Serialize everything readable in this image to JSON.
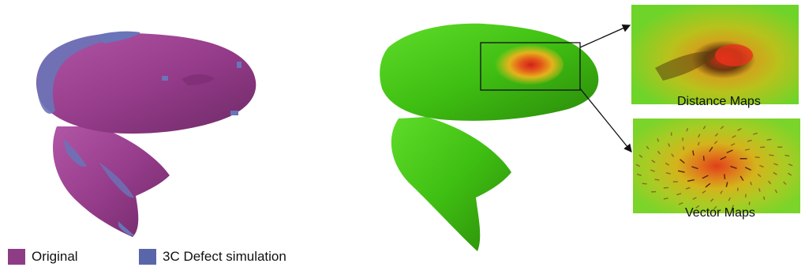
{
  "figure": {
    "legend": [
      {
        "label": "Original",
        "color": "#8e3c86"
      },
      {
        "label": "3C Defect simulation",
        "color": "#5a66aa"
      }
    ],
    "insets": {
      "distance": {
        "caption": "Distance Maps"
      },
      "vector": {
        "caption": "Vector Maps"
      }
    },
    "colors": {
      "bone_green": "#3fbf12",
      "bone_green_dark": "#2a8a0a",
      "bone_pink": "#9a3c8f",
      "defect_blue": "#6a74b8",
      "heat_red": "#e8331a",
      "heat_yellow": "#e4c21c"
    }
  }
}
